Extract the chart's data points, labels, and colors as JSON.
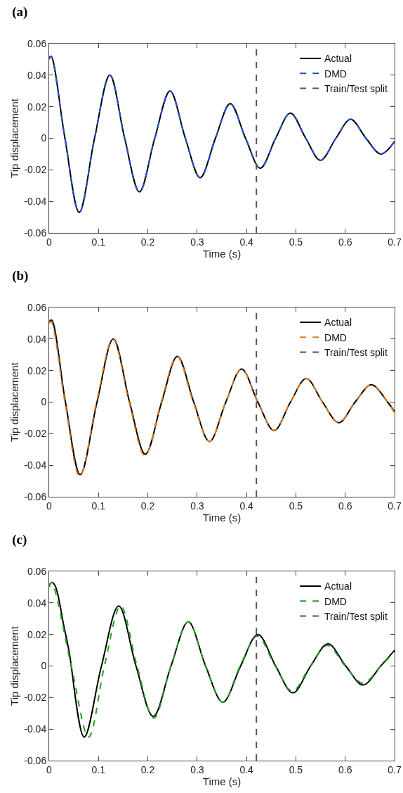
{
  "chart_data": [
    {
      "type": "line",
      "title": "(a)",
      "xlabel": "Time (s)",
      "ylabel": "Tip displacement",
      "xlim": [
        0,
        0.7
      ],
      "ylim": [
        -0.06,
        0.06
      ],
      "xticks": [
        0,
        0.1,
        0.2,
        0.3,
        0.4,
        0.5,
        0.6,
        0.7
      ],
      "yticks": [
        -0.06,
        -0.04,
        -0.02,
        0,
        0.02,
        0.04,
        0.06
      ],
      "legend": "top right",
      "grid": false,
      "series": [
        {
          "name": "Actual",
          "color": "#000000",
          "line_style": "solid",
          "x": [
            0,
            0.004,
            0.032,
            0.061,
            0.092,
            0.123,
            0.153,
            0.183,
            0.214,
            0.245,
            0.276,
            0.306,
            0.337,
            0.367,
            0.398,
            0.428,
            0.459,
            0.489,
            0.52,
            0.55,
            0.581,
            0.611,
            0.642,
            0.672,
            0.7
          ],
          "values": [
            0.051,
            0.052,
            0,
            -0.047,
            0,
            0.04,
            0,
            -0.034,
            0,
            0.03,
            0,
            -0.025,
            0,
            0.022,
            0,
            -0.019,
            0,
            0.016,
            0,
            -0.014,
            0,
            0.012,
            0,
            -0.01,
            -0.002
          ]
        },
        {
          "name": "DMD",
          "color": "#1f4fd6",
          "line_style": "dashed",
          "x": [
            0,
            0.004,
            0.032,
            0.061,
            0.092,
            0.123,
            0.153,
            0.183,
            0.214,
            0.245,
            0.276,
            0.306,
            0.337,
            0.367,
            0.398,
            0.428,
            0.459,
            0.489,
            0.52,
            0.55,
            0.581,
            0.611,
            0.642,
            0.672,
            0.7
          ],
          "values": [
            0.05,
            0.052,
            0,
            -0.047,
            0,
            0.04,
            0,
            -0.034,
            0,
            0.03,
            0,
            -0.025,
            0,
            0.022,
            0,
            -0.019,
            0,
            0.016,
            0,
            -0.014,
            0,
            0.012,
            0,
            -0.01,
            -0.002
          ]
        },
        {
          "name": "Train/Test split",
          "color": "#555555",
          "line_style": "dashed",
          "x": [
            0.42,
            0.42
          ],
          "values": [
            -0.06,
            0.06
          ]
        }
      ]
    },
    {
      "type": "line",
      "title": "(b)",
      "xlabel": "Time (s)",
      "ylabel": "Tip displacement",
      "xlim": [
        0,
        0.7
      ],
      "ylim": [
        -0.06,
        0.06
      ],
      "xticks": [
        0,
        0.1,
        0.2,
        0.3,
        0.4,
        0.5,
        0.6,
        0.7
      ],
      "yticks": [
        -0.06,
        -0.04,
        -0.02,
        0,
        0.02,
        0.04,
        0.06
      ],
      "legend": "top right",
      "grid": false,
      "series": [
        {
          "name": "Actual",
          "color": "#000000",
          "line_style": "solid",
          "x": [
            0,
            0.005,
            0.033,
            0.063,
            0.097,
            0.13,
            0.163,
            0.195,
            0.228,
            0.26,
            0.293,
            0.325,
            0.358,
            0.39,
            0.423,
            0.456,
            0.489,
            0.521,
            0.554,
            0.587,
            0.62,
            0.653,
            0.686,
            0.7
          ],
          "values": [
            0.051,
            0.052,
            0,
            -0.046,
            0,
            0.04,
            0,
            -0.033,
            0,
            0.029,
            0,
            -0.025,
            0,
            0.021,
            0,
            -0.018,
            0,
            0.015,
            0,
            -0.013,
            0,
            0.011,
            0,
            -0.006
          ]
        },
        {
          "name": "DMD",
          "color": "#e07b1a",
          "line_style": "dashed",
          "x": [
            0,
            0.004,
            0.032,
            0.062,
            0.096,
            0.129,
            0.162,
            0.194,
            0.227,
            0.259,
            0.292,
            0.325,
            0.358,
            0.39,
            0.423,
            0.456,
            0.489,
            0.521,
            0.554,
            0.587,
            0.62,
            0.653,
            0.686,
            0.7
          ],
          "values": [
            0.05,
            0.051,
            0,
            -0.047,
            0,
            0.04,
            0,
            -0.034,
            0,
            0.029,
            0,
            -0.025,
            0,
            0.021,
            0,
            -0.018,
            0,
            0.015,
            0,
            -0.013,
            0,
            0.011,
            0,
            -0.007
          ]
        },
        {
          "name": "Train/Test split",
          "color": "#555555",
          "line_style": "dashed",
          "x": [
            0.42,
            0.42
          ],
          "values": [
            -0.06,
            0.06
          ]
        }
      ]
    },
    {
      "type": "line",
      "title": "(c)",
      "xlabel": "Time (s)",
      "ylabel": "Tip displacement",
      "xlim": [
        0,
        0.7
      ],
      "ylim": [
        -0.06,
        0.06
      ],
      "xticks": [
        0,
        0.1,
        0.2,
        0.3,
        0.4,
        0.5,
        0.6,
        0.7
      ],
      "yticks": [
        -0.06,
        -0.04,
        -0.02,
        0,
        0.02,
        0.04,
        0.06
      ],
      "legend": "top right",
      "grid": false,
      "series": [
        {
          "name": "Actual",
          "color": "#000000",
          "line_style": "solid",
          "x": [
            0,
            0.005,
            0.012,
            0.03,
            0.04,
            0.071,
            0.106,
            0.141,
            0.176,
            0.211,
            0.247,
            0.282,
            0.317,
            0.352,
            0.388,
            0.423,
            0.459,
            0.494,
            0.53,
            0.565,
            0.601,
            0.636,
            0.672,
            0.7
          ],
          "values": [
            0.051,
            0.053,
            0.051,
            0.025,
            0.01,
            -0.045,
            0,
            0.038,
            0,
            -0.032,
            0,
            0.028,
            0,
            -0.023,
            0,
            0.02,
            0,
            -0.017,
            0,
            0.014,
            0,
            -0.012,
            0,
            0.01
          ]
        },
        {
          "name": "DMD",
          "color": "#22a022",
          "line_style": "dashed",
          "x": [
            0,
            0.005,
            0.045,
            0.08,
            0.112,
            0.145,
            0.178,
            0.212,
            0.247,
            0.282,
            0.317,
            0.352,
            0.387,
            0.422,
            0.458,
            0.493,
            0.529,
            0.564,
            0.6,
            0.636,
            0.672,
            0.7
          ],
          "values": [
            0.05,
            0.053,
            0,
            -0.045,
            0,
            0.038,
            0,
            -0.033,
            0,
            0.028,
            0,
            -0.023,
            0,
            0.019,
            0,
            -0.016,
            0,
            0.013,
            0,
            -0.011,
            0,
            0.009
          ]
        },
        {
          "name": "Train/Test split",
          "color": "#555555",
          "line_style": "dashed",
          "x": [
            0.42,
            0.42
          ],
          "values": [
            -0.06,
            0.06
          ]
        }
      ]
    }
  ]
}
